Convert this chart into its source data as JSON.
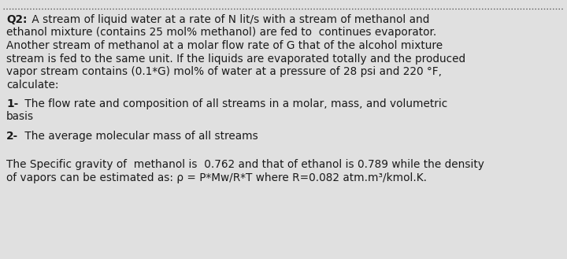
{
  "background_color": "#e0e0e0",
  "dot_line_color": "#555555",
  "text_color": "#1a1a1a",
  "font_family": "DejaVu Sans",
  "main_fontsize": 9.8,
  "bold_fontsize": 9.8,
  "q2_label": "Q2:",
  "para1_line1": " A stream of liquid water at a rate of N lit/s with a stream of methanol and",
  "para1_line2": "ethanol mixture (contains 25 mol% methanol) are fed to  continues evaporator.",
  "para1_line3": "Another stream of methanol at a molar flow rate of G that of the alcohol mixture",
  "para1_line4": "stream is fed to the same unit. If the liquids are evaporated totally and the produced",
  "para1_line5": "vapor stream contains (0.1*G) mol% of water at a pressure of 28 psi and 220 °F,",
  "para1_line6": "calculate:",
  "item1_label": "1-",
  "item1_line1": " The flow rate and composition of all streams in a molar, mass, and volumetric",
  "item1_line2": "basis",
  "item2_label": "2-",
  "item2_line1": " The average molecular mass of all streams",
  "footer_line1": "The Specific gravity of  methanol is  0.762 and that of ethanol is 0.789 while the density",
  "footer_line2": "of vapors can be estimated as: ρ = P*Mw/R*T where R=0.082 atm.m³/kmol.K."
}
